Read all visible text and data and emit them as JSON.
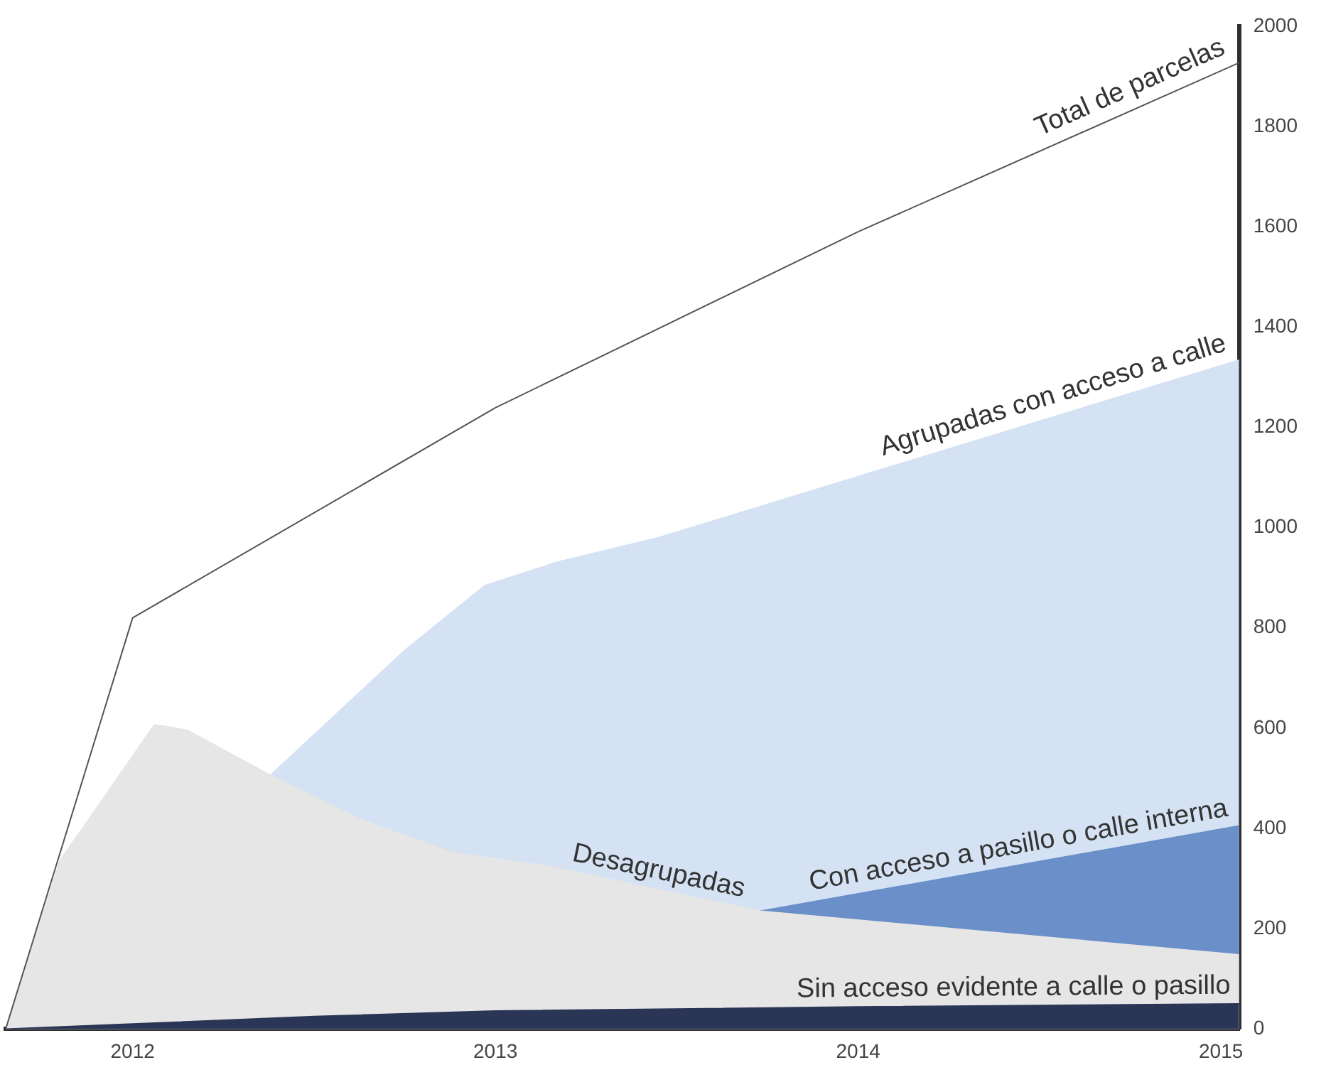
{
  "chart_data": {
    "type": "area",
    "xlim": [
      2011.65,
      2015.05
    ],
    "xticks": [
      2012,
      2013,
      2014,
      2015
    ],
    "ylim": [
      0,
      2000
    ],
    "yticks": [
      0,
      200,
      400,
      600,
      800,
      1000,
      1200,
      1400,
      1600,
      1800,
      2000
    ],
    "grid": false,
    "legend": false,
    "series": [
      {
        "name": "Agrupadas con acceso a calle",
        "color": "#d4e2f3",
        "x": [
          2011.65,
          2012.38,
          2012.75,
          2012.97,
          2013.17,
          2013.45,
          2015.05
        ],
        "values": [
          0,
          506,
          755,
          884,
          931,
          980,
          1334
        ]
      },
      {
        "name": "Con acceso a pasillo o calle interna",
        "color": "#6a8fc9",
        "x": [
          2011.65,
          2013.73,
          2015.05
        ],
        "values": [
          0,
          235,
          405
        ]
      },
      {
        "name": "Desagrupadas",
        "color": "#e6e6e6",
        "x": [
          2011.65,
          2011.8,
          2012.06,
          2012.15,
          2012.38,
          2012.62,
          2012.88,
          2013.15,
          2013.73,
          2015.05
        ],
        "values": [
          0,
          336,
          607,
          596,
          506,
          420,
          352,
          324,
          235,
          148
        ]
      },
      {
        "name": "Sin acceso evidente a calle o pasillo",
        "color": "#2b3656",
        "x": [
          2011.65,
          2012,
          2012.5,
          2013,
          2014,
          2015.05
        ],
        "values": [
          0,
          10,
          25,
          36,
          44,
          50
        ]
      },
      {
        "name": "Total de parcelas",
        "type": "line",
        "color": "#555555",
        "x": [
          2011.65,
          2012,
          2013,
          2014,
          2015.05
        ],
        "values": [
          0,
          820,
          1239,
          1590,
          1927
        ]
      }
    ]
  }
}
